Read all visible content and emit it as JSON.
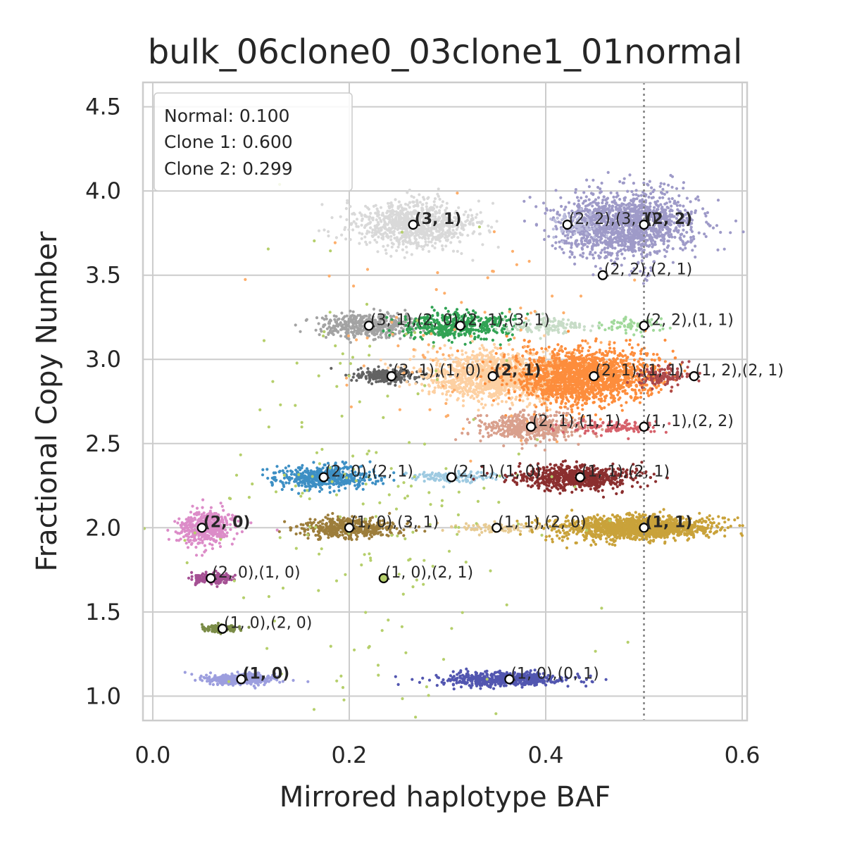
{
  "chart_data": {
    "type": "scatter",
    "title": "bulk_06clone0_03clone1_01normal",
    "xlabel": "Mirrored haplotype BAF",
    "ylabel": "Fractional Copy Number",
    "xlim": [
      -0.01,
      0.605
    ],
    "ylim": [
      0.855,
      4.645
    ],
    "x_ticks": [
      0.0,
      0.2,
      0.4,
      0.6
    ],
    "x_tick_labels": [
      "0.0",
      "0.2",
      "0.4",
      "0.6"
    ],
    "y_ticks": [
      1.0,
      1.5,
      2.0,
      2.5,
      3.0,
      3.5,
      4.0,
      4.5
    ],
    "y_tick_labels": [
      "1.0",
      "1.5",
      "2.0",
      "2.5",
      "3.0",
      "3.5",
      "4.0",
      "4.5"
    ],
    "grid": true,
    "reference_line": {
      "x": 0.5,
      "style": "dotted",
      "color": "#808080"
    },
    "legend": {
      "placement": "top-left",
      "entries": [
        "Normal: 0.100",
        "Clone 1: 0.600",
        "Clone 2: 0.299"
      ]
    },
    "clusters": [
      {
        "x": 0.265,
        "y": 3.8,
        "sx": 0.03,
        "sy": 0.07,
        "n": 900,
        "color": "#d9d9d9"
      },
      {
        "x": 0.48,
        "y": 3.8,
        "sx": 0.035,
        "sy": 0.1,
        "n": 1500,
        "color": "#9e9ac8"
      },
      {
        "x": 0.43,
        "y": 3.8,
        "sx": 0.012,
        "sy": 0.03,
        "n": 70,
        "color": "#bcbddc"
      },
      {
        "x": 0.22,
        "y": 3.2,
        "sx": 0.025,
        "sy": 0.035,
        "n": 450,
        "color": "#a3a3a3"
      },
      {
        "x": 0.31,
        "y": 3.2,
        "sx": 0.028,
        "sy": 0.04,
        "n": 450,
        "color": "#31a354"
      },
      {
        "x": 0.4,
        "y": 3.2,
        "sx": 0.02,
        "sy": 0.025,
        "n": 120,
        "color": "#c7dcc7"
      },
      {
        "x": 0.49,
        "y": 3.2,
        "sx": 0.018,
        "sy": 0.02,
        "n": 70,
        "color": "#a1d99b"
      },
      {
        "x": 0.24,
        "y": 2.9,
        "sx": 0.018,
        "sy": 0.02,
        "n": 250,
        "color": "#636363"
      },
      {
        "x": 0.35,
        "y": 2.9,
        "sx": 0.035,
        "sy": 0.07,
        "n": 1300,
        "color": "#fdd0a2"
      },
      {
        "x": 0.44,
        "y": 2.9,
        "sx": 0.035,
        "sy": 0.08,
        "n": 1700,
        "color": "#fd8d3c"
      },
      {
        "x": 0.52,
        "y": 2.9,
        "sx": 0.015,
        "sy": 0.03,
        "n": 120,
        "color": "#ad494a"
      },
      {
        "x": 0.385,
        "y": 2.6,
        "sx": 0.025,
        "sy": 0.04,
        "n": 500,
        "color": "#d9a08d"
      },
      {
        "x": 0.47,
        "y": 2.6,
        "sx": 0.025,
        "sy": 0.02,
        "n": 120,
        "color": "#d6616b"
      },
      {
        "x": 0.175,
        "y": 2.3,
        "sx": 0.025,
        "sy": 0.035,
        "n": 500,
        "color": "#3d8fc4"
      },
      {
        "x": 0.305,
        "y": 2.3,
        "sx": 0.022,
        "sy": 0.015,
        "n": 130,
        "color": "#9ecae1"
      },
      {
        "x": 0.43,
        "y": 2.3,
        "sx": 0.03,
        "sy": 0.035,
        "n": 700,
        "color": "#8b2f2f"
      },
      {
        "x": 0.055,
        "y": 2.0,
        "sx": 0.013,
        "sy": 0.05,
        "n": 450,
        "color": "#dc8cc8"
      },
      {
        "x": 0.2,
        "y": 2.0,
        "sx": 0.025,
        "sy": 0.03,
        "n": 450,
        "color": "#9c7d3b"
      },
      {
        "x": 0.35,
        "y": 2.0,
        "sx": 0.025,
        "sy": 0.012,
        "n": 100,
        "color": "#e7cb94"
      },
      {
        "x": 0.49,
        "y": 2.0,
        "sx": 0.04,
        "sy": 0.035,
        "n": 1300,
        "color": "#c9a23a"
      },
      {
        "x": 0.06,
        "y": 1.7,
        "sx": 0.01,
        "sy": 0.015,
        "n": 200,
        "color": "#a55194"
      },
      {
        "x": 0.07,
        "y": 1.4,
        "sx": 0.008,
        "sy": 0.012,
        "n": 130,
        "color": "#7b8c47"
      },
      {
        "x": 0.09,
        "y": 1.1,
        "sx": 0.018,
        "sy": 0.015,
        "n": 400,
        "color": "#9c9ede"
      },
      {
        "x": 0.36,
        "y": 1.1,
        "sx": 0.03,
        "sy": 0.02,
        "n": 600,
        "color": "#5256b0"
      },
      {
        "x": 0.22,
        "y": 2.1,
        "sx": 0.09,
        "sy": 0.7,
        "n": 200,
        "color": "#b5cf6b"
      },
      {
        "x": 0.33,
        "y": 3.1,
        "sx": 0.08,
        "sy": 0.3,
        "n": 90,
        "color": "#fdae6b"
      }
    ],
    "annotations": [
      {
        "x": 0.265,
        "y": 3.8,
        "label": "(3, 1)",
        "bold": true,
        "fill": "#ffffff"
      },
      {
        "x": 0.422,
        "y": 3.8,
        "label": "(2, 2),(3, 1)",
        "bold": false,
        "fill": "#ffffff"
      },
      {
        "x": 0.5,
        "y": 3.8,
        "label": "(2, 2)",
        "bold": true,
        "fill": "#ffffff"
      },
      {
        "x": 0.458,
        "y": 3.5,
        "label": "(2, 2),(2, 1)",
        "bold": false,
        "fill": "#ffffff"
      },
      {
        "x": 0.22,
        "y": 3.2,
        "label": "(3, 1),(2, 0)",
        "bold": false,
        "fill": "#ffffff"
      },
      {
        "x": 0.313,
        "y": 3.2,
        "label": "(2, 1),(3, 1)",
        "bold": false,
        "fill": "#ffffff"
      },
      {
        "x": 0.5,
        "y": 3.2,
        "label": "(2, 2),(1, 1)",
        "bold": false,
        "fill": "#ffffff"
      },
      {
        "x": 0.243,
        "y": 2.9,
        "label": "(3, 1),(1, 0)",
        "bold": false,
        "fill": "#ffffff"
      },
      {
        "x": 0.346,
        "y": 2.9,
        "label": "(2, 1)",
        "bold": true,
        "fill": "#ffffff"
      },
      {
        "x": 0.449,
        "y": 2.9,
        "label": "(2, 1),(1, 1)",
        "bold": false,
        "fill": "#ffffff"
      },
      {
        "x": 0.551,
        "y": 2.9,
        "label": "(1, 2),(2, 1)",
        "bold": false,
        "fill": "#ffffff"
      },
      {
        "x": 0.385,
        "y": 2.6,
        "label": "(2, 1),(1, 1)",
        "bold": false,
        "fill": "#ffffff"
      },
      {
        "x": 0.5,
        "y": 2.6,
        "label": "(1, 1),(2, 2)",
        "bold": false,
        "fill": "#ffffff"
      },
      {
        "x": 0.174,
        "y": 2.3,
        "label": "(2, 0),(2, 1)",
        "bold": false,
        "fill": "#ffffff"
      },
      {
        "x": 0.304,
        "y": 2.3,
        "label": "(2, 1),(1, 0)",
        "bold": false,
        "fill": "#ffffff"
      },
      {
        "x": 0.435,
        "y": 2.3,
        "label": "(1, 1),(2, 1)",
        "bold": false,
        "fill": "#ffffff"
      },
      {
        "x": 0.05,
        "y": 2.0,
        "label": "(2, 0)",
        "bold": true,
        "fill": "#ffffff"
      },
      {
        "x": 0.2,
        "y": 2.0,
        "label": "(1, 0),(3, 1)",
        "bold": false,
        "fill": "#ffffff"
      },
      {
        "x": 0.35,
        "y": 2.0,
        "label": "(1, 1),(2, 0)",
        "bold": false,
        "fill": "#ffffff"
      },
      {
        "x": 0.5,
        "y": 2.0,
        "label": "(1, 1)",
        "bold": true,
        "fill": "#ffffff"
      },
      {
        "x": 0.059,
        "y": 1.7,
        "label": "(2, 0),(1, 0)",
        "bold": false,
        "fill": "#ffffff"
      },
      {
        "x": 0.235,
        "y": 1.7,
        "label": "(1, 0),(2, 1)",
        "bold": false,
        "fill": "#b5cf6b"
      },
      {
        "x": 0.071,
        "y": 1.4,
        "label": "(1, 0),(2, 0)",
        "bold": false,
        "fill": "#ffffff"
      },
      {
        "x": 0.09,
        "y": 1.1,
        "label": "(1, 0)",
        "bold": true,
        "fill": "#ffffff"
      },
      {
        "x": 0.363,
        "y": 1.1,
        "label": "(1, 0),(0, 1)",
        "bold": false,
        "fill": "#ffffff"
      }
    ]
  }
}
